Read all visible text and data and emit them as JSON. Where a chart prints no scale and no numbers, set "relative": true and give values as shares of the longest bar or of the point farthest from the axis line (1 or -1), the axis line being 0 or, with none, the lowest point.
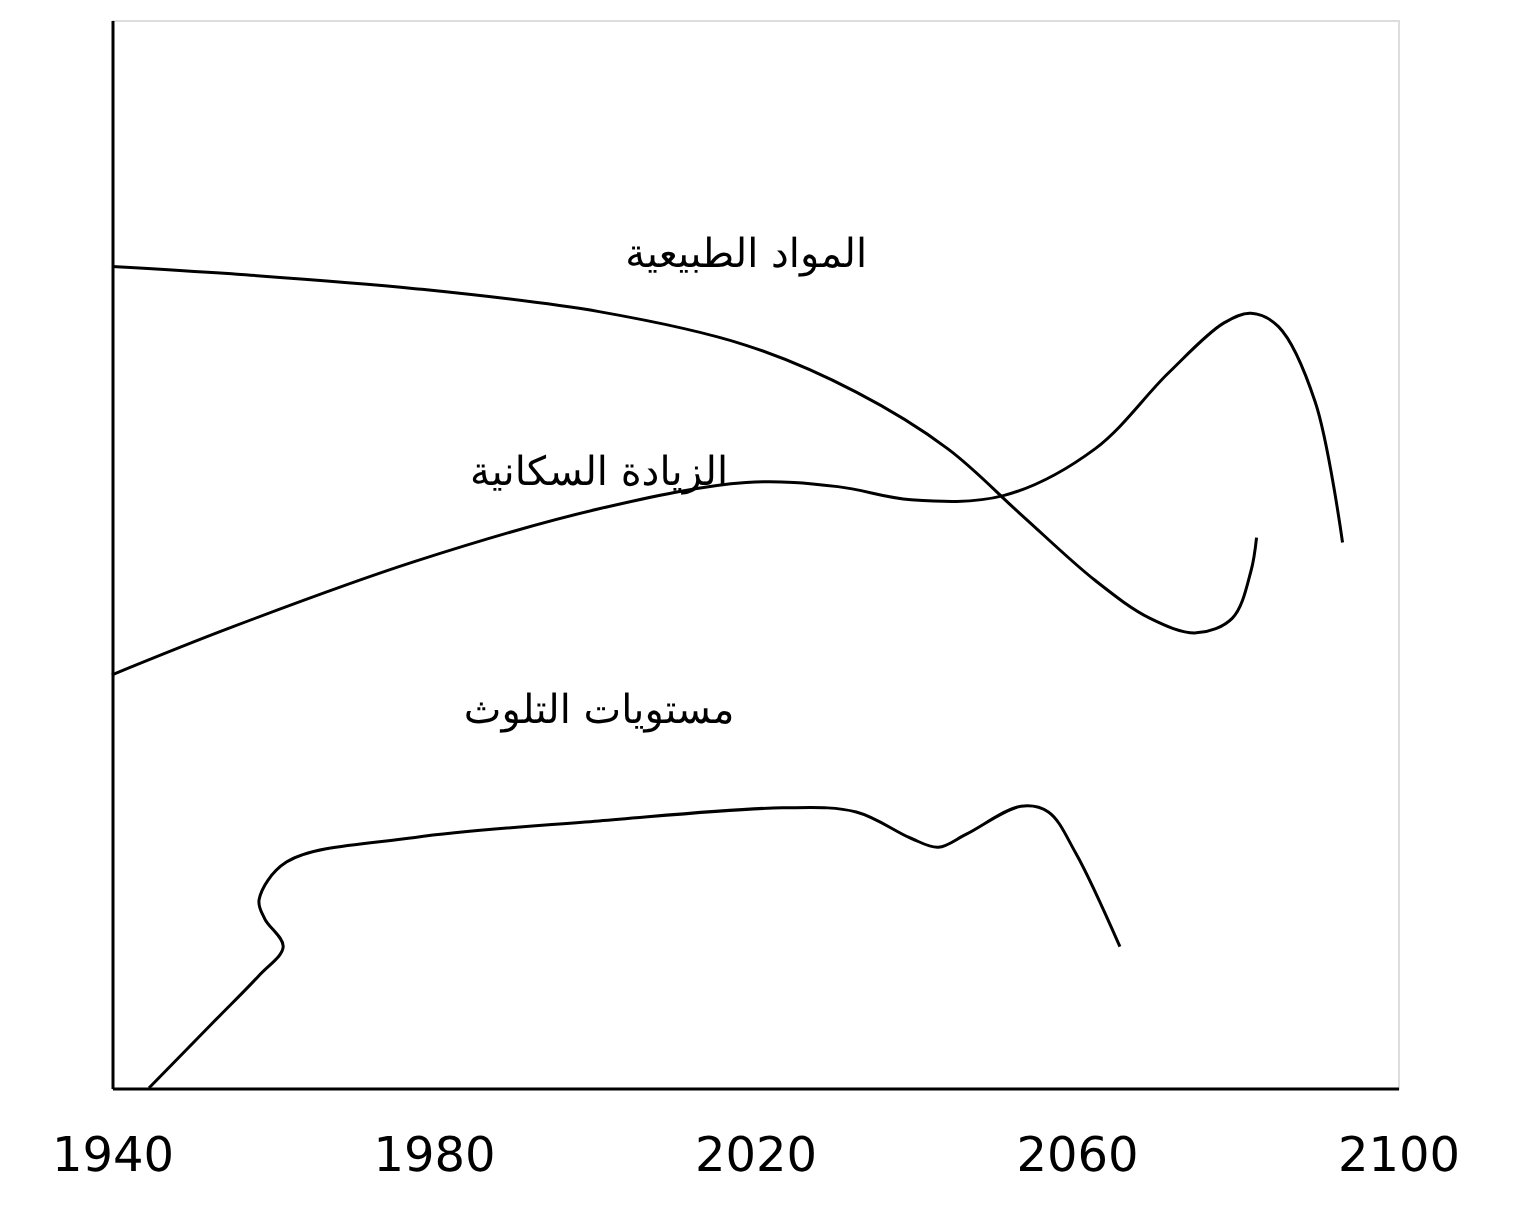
{
  "chart_data": {
    "type": "line",
    "relative": true,
    "xlim": [
      1940,
      2100
    ],
    "xticks": [
      1940,
      1980,
      2020,
      2060,
      2100
    ],
    "grid": false,
    "marker": "none",
    "line_style": "solid",
    "series": [
      {
        "name": "المواد الطبيعية",
        "color": "#000000",
        "x": [
          1940,
          1954.9,
          1977.7,
          2000.6,
          2018.9,
          2032.6,
          2044,
          2053.1,
          2062.3,
          2069.1,
          2074.9,
          2079.4,
          2081.7,
          2082.4
        ],
        "values": [
          1.0,
          0.991,
          0.973,
          0.945,
          0.904,
          0.847,
          0.778,
          0.698,
          0.618,
          0.572,
          0.554,
          0.572,
          0.629,
          0.67
        ]
      },
      {
        "name": "الزيادة السكانية",
        "color": "#000000",
        "x": [
          1940,
          1954.9,
          1977.7,
          2000.6,
          2018.9,
          2030.3,
          2039.4,
          2050.9,
          2062.3,
          2071.4,
          2078.3,
          2081.7,
          2085.1,
          2089.7,
          2093.1
        ],
        "values": [
          0.503,
          0.561,
          0.641,
          0.705,
          0.737,
          0.732,
          0.716,
          0.721,
          0.778,
          0.87,
          0.931,
          0.943,
          0.927,
          0.835,
          0.664
        ]
      },
      {
        "name": "مستويات التلوث",
        "color": "#000000",
        "x": [
          1944.6,
          1952.6,
          1958.3,
          1961.3,
          1959,
          1958.3,
          1961.7,
          1977.7,
          2000.6,
          2023.4,
          2032.6,
          2039.4,
          2042.8,
          2046.3,
          2053.1,
          2056.5,
          2059.9,
          2065.4
        ],
        "values": [
          0,
          0.08,
          0.137,
          0.172,
          0.206,
          0.229,
          0.275,
          0.305,
          0.325,
          0.341,
          0.336,
          0.304,
          0.293,
          0.309,
          0.343,
          0.336,
          0.286,
          0.172
        ]
      }
    ]
  }
}
